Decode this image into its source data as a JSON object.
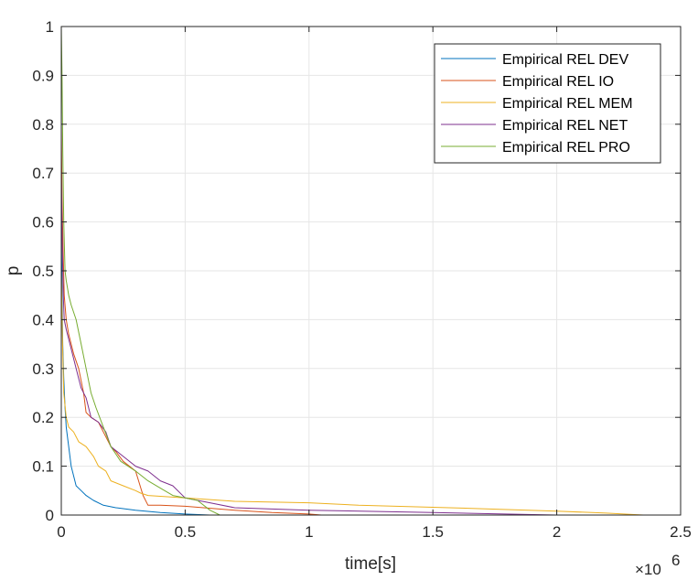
{
  "chart_data": {
    "type": "line",
    "xlabel": "time[s]",
    "ylabel": "p",
    "x_multiplier_base": "×10",
    "x_multiplier_exp": "6",
    "xlim": [
      0,
      2.5
    ],
    "ylim": [
      0,
      1
    ],
    "xticks": [
      0,
      0.5,
      1,
      1.5,
      2,
      2.5
    ],
    "xtick_labels": [
      "0",
      "0.5",
      "1",
      "1.5",
      "2",
      "2.5"
    ],
    "yticks": [
      0,
      0.1,
      0.2,
      0.3,
      0.4,
      0.5,
      0.6,
      0.7,
      0.8,
      0.9,
      1
    ],
    "ytick_labels": [
      "0",
      "0.1",
      "0.2",
      "0.3",
      "0.4",
      "0.5",
      "0.6",
      "0.7",
      "0.8",
      "0.9",
      "1"
    ],
    "grid": true,
    "legend_position": "top-right",
    "series": [
      {
        "name": "Empirical REL DEV",
        "color": "#0072BD",
        "x": [
          0,
          0.003,
          0.006,
          0.01,
          0.015,
          0.02,
          0.03,
          0.04,
          0.05,
          0.06,
          0.08,
          0.1,
          0.13,
          0.17,
          0.22,
          0.3,
          0.4,
          0.5,
          0.6
        ],
        "y": [
          0.6,
          0.45,
          0.35,
          0.28,
          0.22,
          0.18,
          0.14,
          0.1,
          0.08,
          0.06,
          0.05,
          0.04,
          0.03,
          0.02,
          0.015,
          0.01,
          0.005,
          0.002,
          0
        ]
      },
      {
        "name": "Empirical REL IO",
        "color": "#D95319",
        "x": [
          0,
          0.003,
          0.007,
          0.012,
          0.02,
          0.03,
          0.05,
          0.07,
          0.09,
          0.1,
          0.12,
          0.15,
          0.17,
          0.2,
          0.22,
          0.25,
          0.3,
          0.33,
          0.35,
          0.4,
          0.5,
          0.7,
          0.85,
          1.0,
          1.05
        ],
        "y": [
          0.8,
          0.65,
          0.55,
          0.45,
          0.4,
          0.37,
          0.33,
          0.3,
          0.25,
          0.21,
          0.2,
          0.19,
          0.17,
          0.14,
          0.13,
          0.11,
          0.09,
          0.04,
          0.02,
          0.02,
          0.018,
          0.01,
          0.005,
          0.002,
          0
        ]
      },
      {
        "name": "Empirical REL MEM",
        "color": "#EDB120",
        "x": [
          0,
          0.005,
          0.01,
          0.02,
          0.03,
          0.05,
          0.07,
          0.1,
          0.13,
          0.15,
          0.18,
          0.2,
          0.25,
          0.3,
          0.32,
          0.35,
          0.5,
          0.7,
          1.0,
          1.2,
          1.5,
          1.7,
          2.0,
          2.2,
          2.35
        ],
        "y": [
          0.5,
          0.35,
          0.25,
          0.2,
          0.18,
          0.17,
          0.15,
          0.14,
          0.12,
          0.1,
          0.09,
          0.07,
          0.06,
          0.05,
          0.045,
          0.04,
          0.035,
          0.028,
          0.025,
          0.02,
          0.016,
          0.013,
          0.008,
          0.004,
          0
        ]
      },
      {
        "name": "Empirical REL NET",
        "color": "#7E2F8E",
        "x": [
          0,
          0.004,
          0.008,
          0.012,
          0.02,
          0.03,
          0.04,
          0.06,
          0.08,
          0.1,
          0.12,
          0.15,
          0.18,
          0.2,
          0.25,
          0.3,
          0.35,
          0.4,
          0.45,
          0.5,
          0.6,
          0.7,
          1.0,
          1.5,
          2.0
        ],
        "y": [
          0.7,
          0.55,
          0.45,
          0.4,
          0.38,
          0.36,
          0.34,
          0.3,
          0.26,
          0.24,
          0.2,
          0.19,
          0.17,
          0.14,
          0.12,
          0.1,
          0.09,
          0.07,
          0.06,
          0.035,
          0.025,
          0.015,
          0.01,
          0.005,
          0
        ]
      },
      {
        "name": "Empirical REL PRO",
        "color": "#77AC30",
        "x": [
          0,
          0.003,
          0.006,
          0.01,
          0.015,
          0.02,
          0.03,
          0.04,
          0.06,
          0.08,
          0.1,
          0.12,
          0.14,
          0.17,
          0.2,
          0.24,
          0.3,
          0.35,
          0.4,
          0.45,
          0.5,
          0.55,
          0.6,
          0.64
        ],
        "y": [
          1.0,
          0.9,
          0.75,
          0.6,
          0.5,
          0.48,
          0.45,
          0.43,
          0.4,
          0.35,
          0.3,
          0.25,
          0.22,
          0.18,
          0.14,
          0.11,
          0.09,
          0.07,
          0.055,
          0.04,
          0.035,
          0.03,
          0.01,
          0
        ]
      }
    ]
  }
}
